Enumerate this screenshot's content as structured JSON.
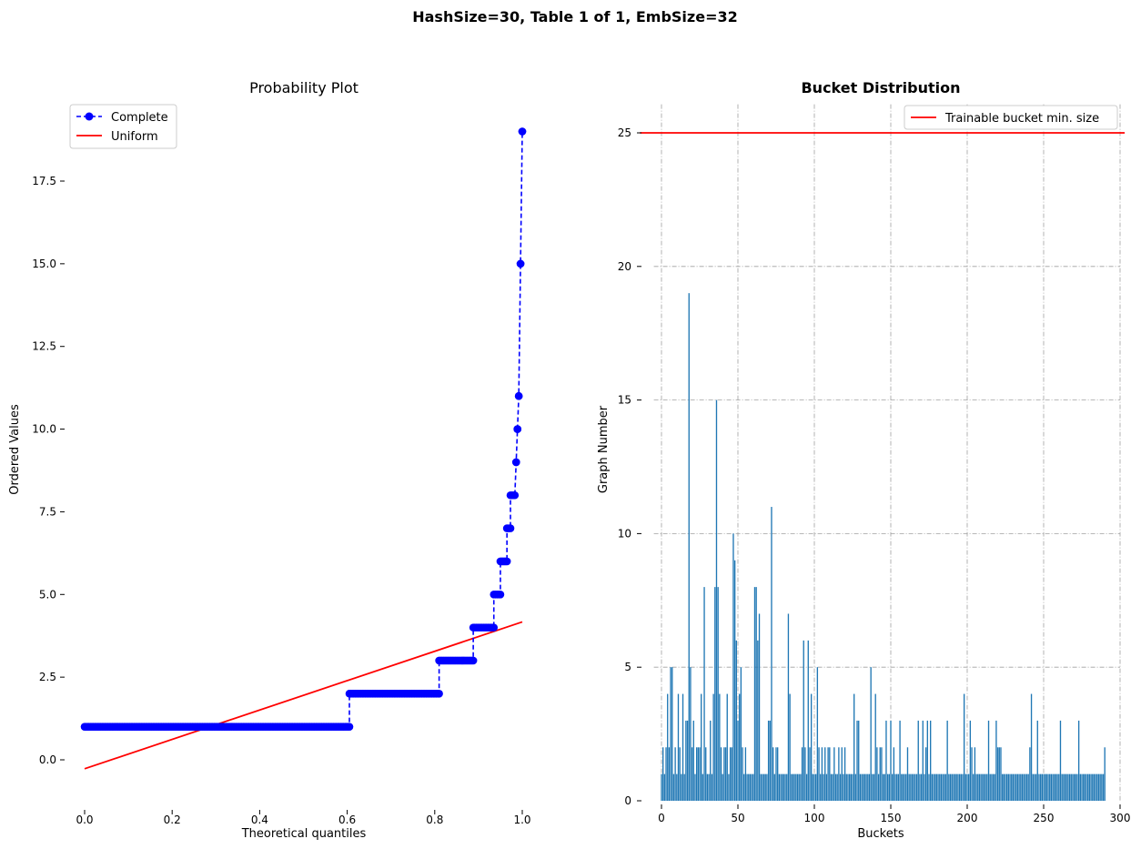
{
  "figure": {
    "suptitle": "HashSize=30, Table 1 of 1, EmbSize=32"
  },
  "chart_data": [
    {
      "type": "scatter",
      "title": "Probability Plot",
      "xlabel": "Theoretical quantiles",
      "ylabel": "Ordered Values",
      "xlim": [
        -0.05,
        1.05
      ],
      "ylim": [
        -1.2,
        19.8
      ],
      "xticks": [
        0.0,
        0.2,
        0.4,
        0.6,
        0.8,
        1.0
      ],
      "xtick_labels": [
        "0.0",
        "0.2",
        "0.4",
        "0.6",
        "0.8",
        "1.0"
      ],
      "yticks": [
        0.0,
        2.5,
        5.0,
        7.5,
        10.0,
        12.5,
        15.0,
        17.5
      ],
      "ytick_labels": [
        "0.0",
        "2.5",
        "5.0",
        "7.5",
        "10.0",
        "12.5",
        "15.0",
        "17.5"
      ],
      "grid": false,
      "legend": {
        "placement": "top-left"
      },
      "series": [
        {
          "name": "Complete",
          "style": "dashed line with circle markers",
          "color": "#0000ff",
          "steps": [
            {
              "value": 1,
              "x_from": 0.0,
              "x_to": 0.605
            },
            {
              "value": 2,
              "x_from": 0.605,
              "x_to": 0.81
            },
            {
              "value": 3,
              "x_from": 0.81,
              "x_to": 0.888
            },
            {
              "value": 4,
              "x_from": 0.888,
              "x_to": 0.935
            },
            {
              "value": 5,
              "x_from": 0.935,
              "x_to": 0.95
            },
            {
              "value": 6,
              "x_from": 0.95,
              "x_to": 0.965
            },
            {
              "value": 7,
              "x_from": 0.965,
              "x_to": 0.973
            },
            {
              "value": 8,
              "x_from": 0.973,
              "x_to": 0.983
            },
            {
              "value": 9,
              "x_from": 0.986,
              "x_to": 0.986
            },
            {
              "value": 10,
              "x_from": 0.989,
              "x_to": 0.989
            },
            {
              "value": 11,
              "x_from": 0.992,
              "x_to": 0.992
            },
            {
              "value": 15,
              "x_from": 0.996,
              "x_to": 0.996
            },
            {
              "value": 19,
              "x_from": 1.0,
              "x_to": 1.0
            }
          ]
        },
        {
          "name": "Uniform",
          "style": "solid line",
          "color": "#ff0000",
          "x": [
            0.0,
            1.0
          ],
          "y": [
            -0.27,
            4.17
          ]
        }
      ]
    },
    {
      "type": "bar",
      "title": "Bucket Distribution",
      "xlabel": "Buckets",
      "ylabel": "Graph Number",
      "xlim": [
        -5,
        300
      ],
      "ylim": [
        0,
        26
      ],
      "xticks": [
        0,
        50,
        100,
        150,
        200,
        250,
        300
      ],
      "xtick_labels": [
        "0",
        "50",
        "100",
        "150",
        "200",
        "250",
        "300"
      ],
      "yticks": [
        0,
        5,
        10,
        15,
        20,
        25
      ],
      "ytick_labels": [
        "0",
        "5",
        "10",
        "15",
        "20",
        "25"
      ],
      "grid": true,
      "legend": {
        "placement": "top-right"
      },
      "bar_color": "#1f77b4",
      "hline": {
        "name": "Trainable bucket min. size",
        "y": 25,
        "color": "#ff0000"
      },
      "x_start": 0,
      "values": [
        1,
        2,
        1,
        2,
        4,
        2,
        5,
        5,
        1,
        2,
        1,
        4,
        2,
        1,
        4,
        1,
        3,
        3,
        19,
        5,
        2,
        3,
        1,
        2,
        2,
        2,
        4,
        1,
        8,
        2,
        1,
        1,
        3,
        1,
        4,
        8,
        15,
        8,
        4,
        2,
        1,
        2,
        2,
        4,
        1,
        2,
        2,
        10,
        9,
        6,
        3,
        4,
        5,
        2,
        1,
        2,
        1,
        1,
        1,
        1,
        1,
        8,
        8,
        6,
        7,
        1,
        1,
        1,
        1,
        1,
        3,
        3,
        11,
        2,
        1,
        2,
        2,
        1,
        1,
        1,
        1,
        1,
        1,
        7,
        4,
        1,
        1,
        1,
        1,
        1,
        1,
        1,
        2,
        6,
        2,
        1,
        6,
        2,
        4,
        1,
        1,
        1,
        5,
        2,
        1,
        2,
        1,
        2,
        1,
        2,
        2,
        1,
        1,
        2,
        1,
        1,
        2,
        1,
        2,
        1,
        2,
        1,
        1,
        1,
        1,
        1,
        4,
        1,
        3,
        3,
        1,
        1,
        1,
        1,
        1,
        1,
        1,
        5,
        1,
        1,
        4,
        2,
        1,
        2,
        2,
        1,
        1,
        3,
        1,
        1,
        3,
        1,
        2,
        1,
        1,
        1,
        3,
        1,
        1,
        1,
        1,
        2,
        1,
        1,
        1,
        1,
        1,
        1,
        3,
        1,
        1,
        3,
        1,
        2,
        3,
        1,
        3,
        1,
        1,
        1,
        1,
        1,
        1,
        1,
        1,
        1,
        1,
        3,
        1,
        1,
        1,
        1,
        1,
        1,
        1,
        1,
        1,
        1,
        4,
        1,
        1,
        1,
        3,
        2,
        1,
        2,
        1,
        1,
        1,
        1,
        1,
        1,
        1,
        1,
        3,
        1,
        1,
        1,
        1,
        3,
        2,
        2,
        2,
        1,
        1,
        1,
        1,
        1,
        1,
        1,
        1,
        1,
        1,
        1,
        1,
        1,
        1,
        1,
        1,
        1,
        1,
        2,
        4,
        1,
        1,
        1,
        3,
        1,
        1,
        1,
        1,
        1,
        1,
        1,
        1,
        1,
        1,
        1,
        1,
        1,
        1,
        3,
        1,
        1,
        1,
        1,
        1,
        1,
        1,
        1,
        1,
        1,
        1,
        3,
        1,
        1,
        1,
        1,
        1,
        1,
        1,
        1,
        1,
        1,
        1,
        1,
        1,
        1,
        1,
        1,
        2
      ]
    }
  ]
}
